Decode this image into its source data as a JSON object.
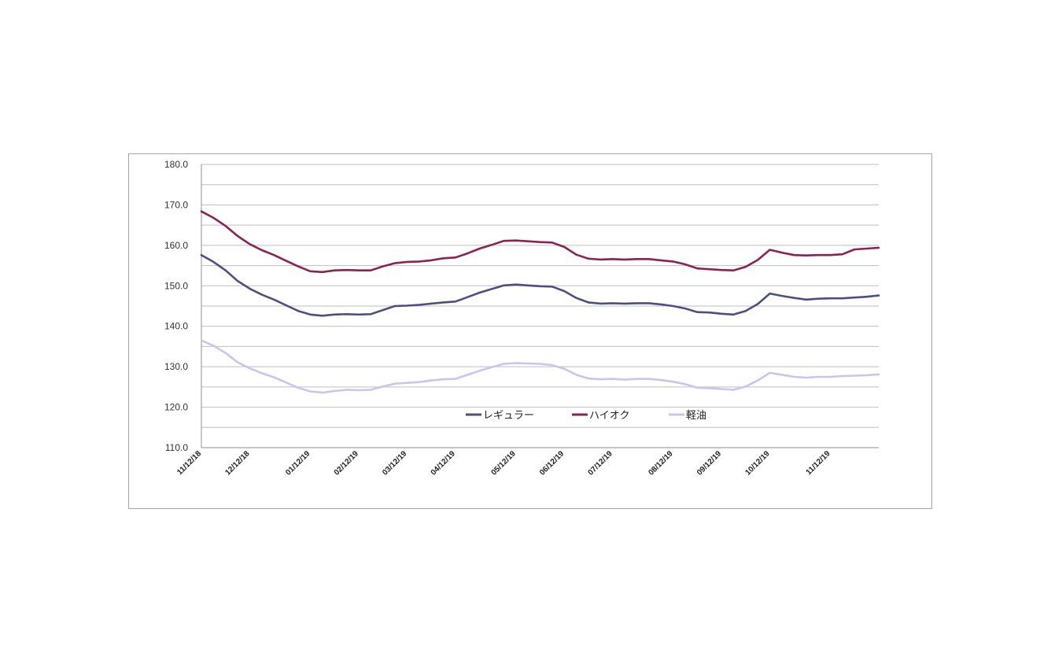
{
  "chart_data": {
    "type": "line",
    "title": "",
    "xlabel": "",
    "ylabel": "",
    "ylim": [
      110,
      180
    ],
    "yticks": [
      "180.0",
      "170.0",
      "160.0",
      "150.0",
      "140.0",
      "130.0",
      "120.0",
      "110.0"
    ],
    "ytick_values": [
      180,
      170,
      160,
      150,
      140,
      130,
      120,
      110
    ],
    "grid": true,
    "legend_position": "bottom-center-inside",
    "x_tick_labels": [
      "11/12/18",
      "12/12/18",
      "01/12/19",
      "02/12/19",
      "03/12/19",
      "04/12/19",
      "05/12/19",
      "06/12/19",
      "07/12/19",
      "08/12/19",
      "09/12/19",
      "10/12/19",
      "11/12/19"
    ],
    "x_tick_indices": [
      0,
      4,
      9,
      13,
      17,
      21,
      26,
      30,
      34,
      39,
      43,
      47,
      52
    ],
    "num_points": 57,
    "series": [
      {
        "name": "レギュラー",
        "color": "#4e4f80",
        "values": [
          157.6,
          155.9,
          153.8,
          151.2,
          149.3,
          147.8,
          146.6,
          145.2,
          143.8,
          142.9,
          142.6,
          142.9,
          143.0,
          142.9,
          143.0,
          144.0,
          145.0,
          145.1,
          145.3,
          145.6,
          145.9,
          146.1,
          147.2,
          148.3,
          149.2,
          150.1,
          150.3,
          150.1,
          149.9,
          149.8,
          148.7,
          147.0,
          145.9,
          145.6,
          145.7,
          145.6,
          145.7,
          145.7,
          145.4,
          145.0,
          144.4,
          143.5,
          143.4,
          143.1,
          142.9,
          143.8,
          145.5,
          148.1,
          147.5,
          147.0,
          146.6,
          146.8,
          146.9,
          146.9,
          147.1,
          147.3,
          147.6
        ]
      },
      {
        "name": "ハイオク",
        "color": "#8b2252",
        "values": [
          168.4,
          166.8,
          164.8,
          162.3,
          160.3,
          158.8,
          157.6,
          156.2,
          154.8,
          153.6,
          153.4,
          153.8,
          153.9,
          153.8,
          153.8,
          154.8,
          155.6,
          155.9,
          156.0,
          156.3,
          156.8,
          157.0,
          158.0,
          159.2,
          160.1,
          161.1,
          161.2,
          161.0,
          160.8,
          160.7,
          159.6,
          157.7,
          156.7,
          156.5,
          156.6,
          156.5,
          156.6,
          156.6,
          156.3,
          156.0,
          155.3,
          154.3,
          154.1,
          153.9,
          153.8,
          154.7,
          156.4,
          158.9,
          158.2,
          157.6,
          157.5,
          157.6,
          157.6,
          157.8,
          159.0,
          159.2,
          159.4
        ]
      },
      {
        "name": "軽油",
        "color": "#c8c5ef",
        "values": [
          136.5,
          135.2,
          133.4,
          131.1,
          129.6,
          128.4,
          127.4,
          126.1,
          124.8,
          123.9,
          123.6,
          124.0,
          124.3,
          124.2,
          124.3,
          125.1,
          125.8,
          126.0,
          126.2,
          126.6,
          126.9,
          127.0,
          128.0,
          129.0,
          129.9,
          130.7,
          130.9,
          130.8,
          130.7,
          130.4,
          129.5,
          128.0,
          127.1,
          126.9,
          127.0,
          126.8,
          127.0,
          127.0,
          126.7,
          126.3,
          125.7,
          124.8,
          124.7,
          124.5,
          124.3,
          125.1,
          126.6,
          128.5,
          128.0,
          127.5,
          127.3,
          127.5,
          127.5,
          127.7,
          127.8,
          127.9,
          128.1
        ]
      }
    ]
  }
}
